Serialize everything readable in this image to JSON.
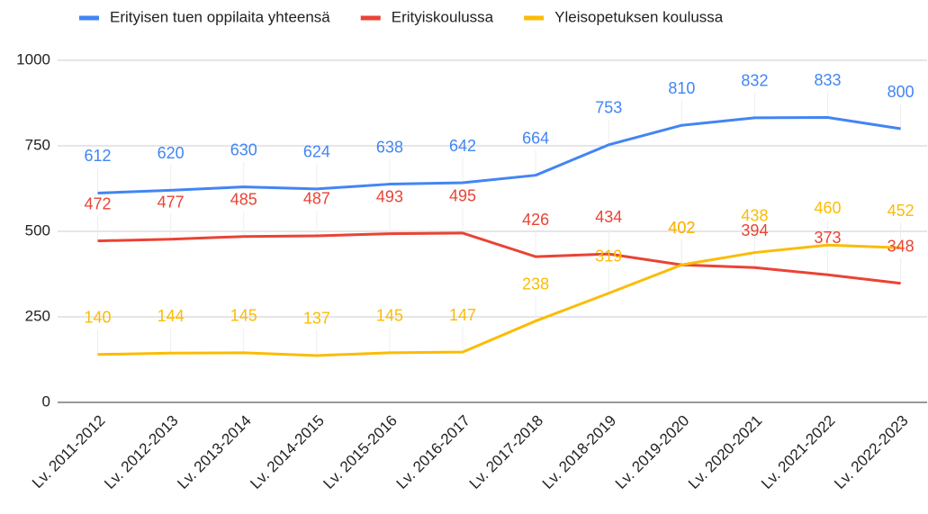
{
  "chart_data": {
    "type": "line",
    "categories": [
      "Lv. 2011-2012",
      "Lv. 2012-2013",
      "Lv. 2013-2014",
      "Lv. 2014-2015",
      "Lv. 2015-2016",
      "Lv. 2016-2017",
      "Lv. 2017-2018",
      "Lv. 2018-2019",
      "Lv. 2019-2020",
      "Lv. 2020-2021",
      "Lv. 2021-2022",
      "Lv. 2022-2023"
    ],
    "series": [
      {
        "name": "Erityisen tuen oppilaita yhteensä",
        "color": "#4285f4",
        "values": [
          612,
          620,
          630,
          624,
          638,
          642,
          664,
          753,
          810,
          832,
          833,
          800
        ]
      },
      {
        "name": "Erityiskoulussa",
        "color": "#ea4335",
        "values": [
          472,
          477,
          485,
          487,
          493,
          495,
          426,
          434,
          402,
          394,
          373,
          348
        ]
      },
      {
        "name": "Yleisopetuksen koulussa",
        "color": "#fbbc04",
        "values": [
          140,
          144,
          145,
          137,
          145,
          147,
          238,
          319,
          402,
          438,
          460,
          452
        ]
      }
    ],
    "ylim": [
      0,
      1000
    ],
    "yticks": [
      0,
      250,
      500,
      750,
      1000
    ],
    "grid": true,
    "legend": "top"
  }
}
